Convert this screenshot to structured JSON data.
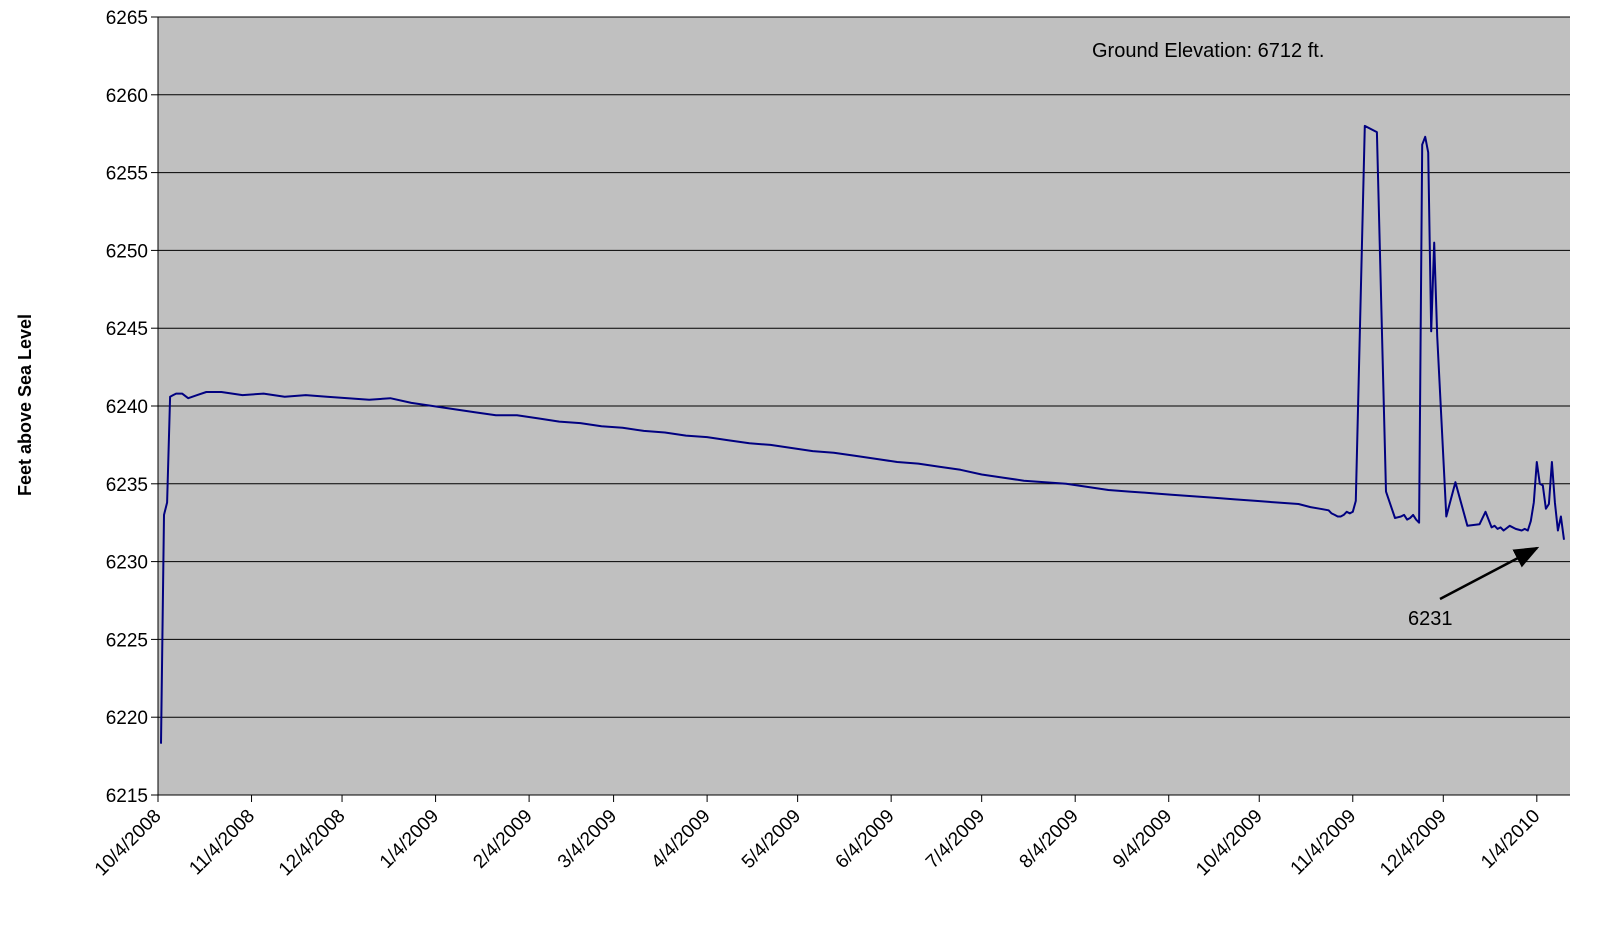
{
  "chart_data": {
    "type": "line",
    "ylabel": "Feet above Sea Level",
    "xlabel": "",
    "ylim": [
      6215,
      6265
    ],
    "yticks": [
      6215,
      6220,
      6225,
      6230,
      6235,
      6240,
      6245,
      6250,
      6255,
      6260,
      6265
    ],
    "x_tick_labels": [
      "10/4/2008",
      "11/4/2008",
      "12/4/2008",
      "1/4/2009",
      "2/4/2009",
      "3/4/2009",
      "4/4/2009",
      "5/4/2009",
      "6/4/2009",
      "7/4/2009",
      "8/4/2009",
      "9/4/2009",
      "10/4/2009",
      "11/4/2009",
      "12/4/2009",
      "1/4/2010"
    ],
    "xlim": [
      "2008-10-04",
      "2010-01-15"
    ],
    "grid": true,
    "plot_background": "#c0c0c0",
    "line_color": "#000080",
    "annotations": {
      "ground_elevation": "Ground Elevation: 6712 ft.",
      "last_value": "6231"
    },
    "series": [
      {
        "x": [
          "2008-10-05",
          "2008-10-06",
          "2008-10-07",
          "2008-10-08",
          "2008-10-09",
          "2008-10-10",
          "2008-10-12",
          "2008-10-14",
          "2008-10-17",
          "2008-10-20",
          "2008-10-25",
          "2008-11-01",
          "2008-11-08",
          "2008-11-15",
          "2008-11-22",
          "2008-11-29",
          "2008-12-06",
          "2008-12-13",
          "2008-12-20",
          "2008-12-27",
          "2009-01-03",
          "2009-01-10",
          "2009-01-17",
          "2009-01-24",
          "2009-01-31",
          "2009-02-07",
          "2009-02-14",
          "2009-02-21",
          "2009-02-28",
          "2009-03-07",
          "2009-03-14",
          "2009-03-21",
          "2009-03-28",
          "2009-04-04",
          "2009-04-11",
          "2009-04-18",
          "2009-04-25",
          "2009-05-02",
          "2009-05-09",
          "2009-05-16",
          "2009-05-23",
          "2009-05-30",
          "2009-06-06",
          "2009-06-13",
          "2009-06-20",
          "2009-06-27",
          "2009-07-04",
          "2009-07-11",
          "2009-07-18",
          "2009-07-25",
          "2009-08-01",
          "2009-08-08",
          "2009-08-15",
          "2009-08-22",
          "2009-08-29",
          "2009-09-05",
          "2009-09-12",
          "2009-09-19",
          "2009-09-26",
          "2009-10-03",
          "2009-10-10",
          "2009-10-17",
          "2009-10-21",
          "2009-10-24",
          "2009-10-27",
          "2009-10-28",
          "2009-10-29",
          "2009-10-30",
          "2009-10-31",
          "2009-11-01",
          "2009-11-02",
          "2009-11-03",
          "2009-11-04",
          "2009-11-05",
          "2009-11-08",
          "2009-11-12",
          "2009-11-15",
          "2009-11-18",
          "2009-11-20",
          "2009-11-21",
          "2009-11-22",
          "2009-11-23",
          "2009-11-24",
          "2009-11-25",
          "2009-11-26",
          "2009-11-27",
          "2009-11-28",
          "2009-11-29",
          "2009-11-30",
          "2009-12-01",
          "2009-12-02",
          "2009-12-05",
          "2009-12-08",
          "2009-12-12",
          "2009-12-16",
          "2009-12-18",
          "2009-12-20",
          "2009-12-21",
          "2009-12-22",
          "2009-12-23",
          "2009-12-24",
          "2009-12-26",
          "2009-12-28",
          "2009-12-30",
          "2009-12-31",
          "2010-01-01",
          "2010-01-02",
          "2010-01-03",
          "2010-01-04",
          "2010-01-05",
          "2010-01-06",
          "2010-01-07",
          "2010-01-08",
          "2010-01-09",
          "2010-01-10",
          "2010-01-11",
          "2010-01-12",
          "2010-01-13"
        ],
        "y": [
          6218.3,
          6233.0,
          6233.8,
          6240.6,
          6240.7,
          6240.8,
          6240.8,
          6240.5,
          6240.7,
          6240.9,
          6240.9,
          6240.7,
          6240.8,
          6240.6,
          6240.7,
          6240.6,
          6240.5,
          6240.4,
          6240.5,
          6240.2,
          6240.0,
          6239.8,
          6239.6,
          6239.4,
          6239.4,
          6239.2,
          6239.0,
          6238.9,
          6238.7,
          6238.6,
          6238.4,
          6238.3,
          6238.1,
          6238.0,
          6237.8,
          6237.6,
          6237.5,
          6237.3,
          6237.1,
          6237.0,
          6236.8,
          6236.6,
          6236.4,
          6236.3,
          6236.1,
          6235.9,
          6235.6,
          6235.4,
          6235.2,
          6235.1,
          6235.0,
          6234.8,
          6234.6,
          6234.5,
          6234.4,
          6234.3,
          6234.2,
          6234.1,
          6234.0,
          6233.9,
          6233.8,
          6233.7,
          6233.5,
          6233.4,
          6233.3,
          6233.1,
          6233.0,
          6232.9,
          6232.9,
          6233.0,
          6233.2,
          6233.1,
          6233.2,
          6233.9,
          6258.0,
          6257.6,
          6234.5,
          6232.8,
          6232.9,
          6233.0,
          6232.7,
          6232.8,
          6233.0,
          6232.7,
          6232.5,
          6256.8,
          6257.3,
          6256.3,
          6244.8,
          6250.5,
          6244.5,
          6232.9,
          6235.1,
          6232.3,
          6232.4,
          6233.2,
          6232.2,
          6232.3,
          6232.1,
          6232.2,
          6232.0,
          6232.3,
          6232.1,
          6232.0,
          6232.1,
          6232.0,
          6232.6,
          6233.8,
          6236.4,
          6235.0,
          6234.9,
          6233.4,
          6233.7,
          6236.4,
          6233.8,
          6232.0,
          6232.9,
          6231.4
        ]
      }
    ]
  }
}
